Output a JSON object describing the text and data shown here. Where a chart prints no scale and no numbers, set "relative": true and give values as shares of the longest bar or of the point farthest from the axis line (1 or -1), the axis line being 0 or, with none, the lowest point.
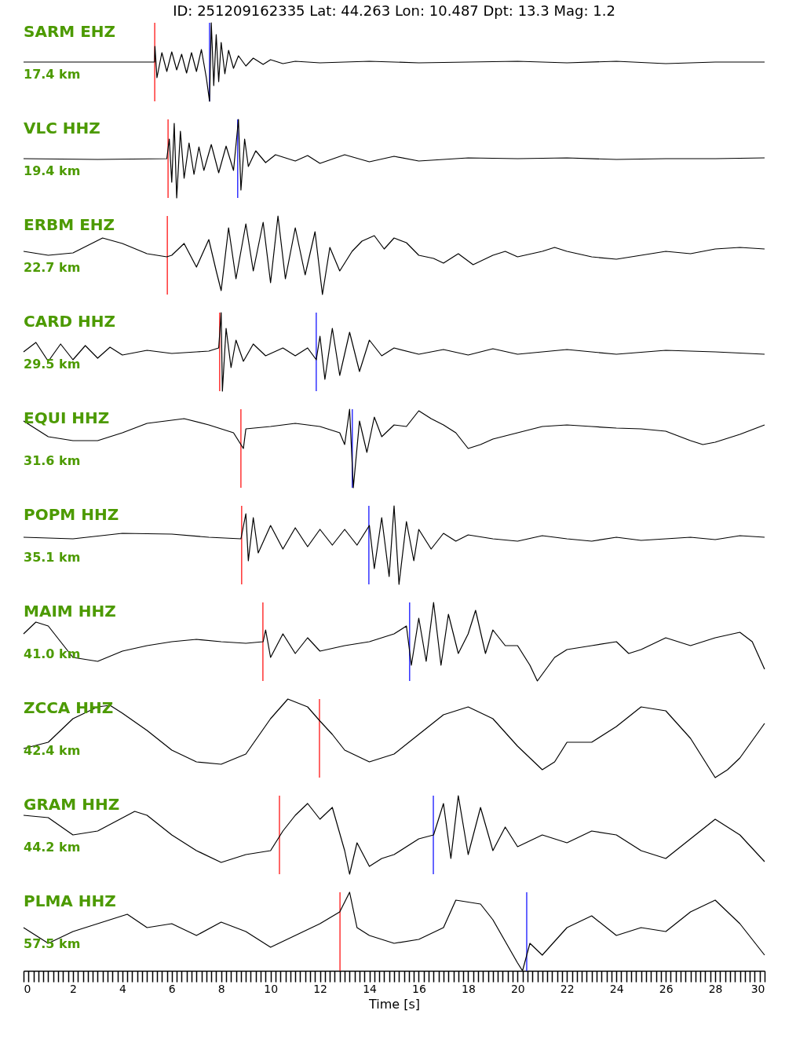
{
  "chart_data": [
    {
      "type": "line",
      "title": "ID: 251209162335 Lat:  44.263 Lon:  10.487 Dpt:    13.3 Mag:   1.2",
      "relative": true,
      "tick_labels": false,
      "xlim": [
        0,
        30
      ],
      "annotations": [
        "SARM EHZ",
        "17.4 km"
      ],
      "ref_lines": [
        {
          "axis": "x",
          "value": 5.31,
          "color": "#ff0000"
        },
        {
          "axis": "x",
          "value": 7.53,
          "color": "#0000ff"
        }
      ],
      "x": [
        0,
        5.0,
        5.3,
        5.32,
        5.4,
        5.6,
        5.8,
        6.0,
        6.2,
        6.4,
        6.6,
        6.8,
        7.0,
        7.2,
        7.4,
        7.53,
        7.6,
        7.7,
        7.8,
        7.9,
        8.0,
        8.15,
        8.3,
        8.5,
        8.7,
        9,
        9.3,
        9.7,
        10,
        10.5,
        11,
        12,
        14,
        16,
        18,
        20,
        22,
        24,
        26,
        28,
        30
      ],
      "series": [
        {
          "color": "#000000",
          "values": [
            0.5,
            0.5,
            0.5,
            0.7,
            0.3,
            0.62,
            0.38,
            0.63,
            0.4,
            0.6,
            0.36,
            0.62,
            0.38,
            0.66,
            0.3,
            0.0,
            1.0,
            0.2,
            0.85,
            0.25,
            0.75,
            0.35,
            0.65,
            0.42,
            0.58,
            0.45,
            0.55,
            0.47,
            0.53,
            0.48,
            0.51,
            0.49,
            0.51,
            0.49,
            0.5,
            0.51,
            0.49,
            0.51,
            0.48,
            0.5,
            0.5
          ]
        }
      ]
    },
    {
      "type": "line",
      "relative": true,
      "tick_labels": false,
      "xlim": [
        0,
        30
      ],
      "annotations": [
        "VLC HHZ",
        "19.4 km"
      ],
      "ref_lines": [
        {
          "axis": "x",
          "value": 5.85,
          "color": "#ff0000"
        },
        {
          "axis": "x",
          "value": 8.67,
          "color": "#0000ff"
        }
      ],
      "x": [
        0,
        3,
        5.8,
        5.9,
        6.0,
        6.1,
        6.2,
        6.35,
        6.5,
        6.7,
        6.9,
        7.1,
        7.3,
        7.6,
        7.9,
        8.2,
        8.5,
        8.7,
        8.8,
        8.95,
        9.1,
        9.4,
        9.8,
        10.2,
        11,
        11.5,
        12,
        13,
        14,
        15,
        16,
        18,
        20,
        22,
        24,
        26,
        28,
        30
      ],
      "series": [
        {
          "color": "#000000",
          "values": [
            0.5,
            0.49,
            0.5,
            0.75,
            0.2,
            0.95,
            0.0,
            0.85,
            0.25,
            0.7,
            0.3,
            0.65,
            0.35,
            0.68,
            0.32,
            0.66,
            0.35,
            1.0,
            0.1,
            0.75,
            0.4,
            0.6,
            0.45,
            0.55,
            0.47,
            0.54,
            0.44,
            0.55,
            0.46,
            0.53,
            0.47,
            0.51,
            0.5,
            0.51,
            0.49,
            0.5,
            0.5,
            0.51
          ]
        }
      ]
    },
    {
      "type": "line",
      "relative": true,
      "tick_labels": false,
      "xlim": [
        0,
        30
      ],
      "annotations": [
        "ERBM EHZ",
        "22.7 km"
      ],
      "ref_lines": [
        {
          "axis": "x",
          "value": 5.82,
          "color": "#ff0000"
        }
      ],
      "x": [
        0,
        1,
        2,
        3.2,
        4,
        5,
        5.8,
        6,
        6.5,
        7,
        7.5,
        7.8,
        8.0,
        8.3,
        8.6,
        9,
        9.3,
        9.7,
        10,
        10.3,
        10.6,
        11,
        11.4,
        11.8,
        12.1,
        12.4,
        12.8,
        13.3,
        13.7,
        14.2,
        14.6,
        15,
        15.5,
        16,
        16.6,
        17,
        17.6,
        18.2,
        19,
        19.5,
        20,
        21,
        21.5,
        22,
        23,
        24,
        25,
        26,
        27,
        28,
        29,
        30
      ],
      "series": [
        {
          "color": "#000000",
          "values": [
            0.55,
            0.5,
            0.53,
            0.72,
            0.65,
            0.52,
            0.48,
            0.5,
            0.65,
            0.35,
            0.7,
            0.3,
            0.05,
            0.85,
            0.2,
            0.9,
            0.3,
            0.92,
            0.15,
            1.0,
            0.2,
            0.85,
            0.25,
            0.8,
            0.0,
            0.6,
            0.3,
            0.55,
            0.68,
            0.75,
            0.58,
            0.72,
            0.66,
            0.5,
            0.46,
            0.4,
            0.52,
            0.38,
            0.5,
            0.55,
            0.48,
            0.55,
            0.6,
            0.55,
            0.48,
            0.45,
            0.5,
            0.55,
            0.52,
            0.58,
            0.6,
            0.58
          ]
        }
      ]
    },
    {
      "type": "line",
      "relative": true,
      "tick_labels": false,
      "xlim": [
        0,
        30
      ],
      "annotations": [
        "CARD HHZ",
        "29.5 km"
      ],
      "ref_lines": [
        {
          "axis": "x",
          "value": 7.94,
          "color": "#ff0000"
        },
        {
          "axis": "x",
          "value": 11.85,
          "color": "#0000ff"
        }
      ],
      "x": [
        0,
        0.5,
        1,
        1.5,
        2,
        2.5,
        3,
        3.5,
        4,
        5,
        6,
        7,
        7.5,
        7.9,
        8.0,
        8.05,
        8.2,
        8.4,
        8.6,
        8.9,
        9.3,
        9.8,
        10.5,
        11,
        11.5,
        11.85,
        12,
        12.2,
        12.5,
        12.8,
        13.2,
        13.6,
        14,
        14.5,
        15,
        16,
        17,
        18,
        19,
        20,
        22,
        24,
        26,
        28,
        30
      ],
      "series": [
        {
          "color": "#000000",
          "values": [
            0.5,
            0.62,
            0.38,
            0.6,
            0.4,
            0.58,
            0.42,
            0.56,
            0.46,
            0.52,
            0.48,
            0.5,
            0.51,
            0.55,
            1.0,
            0.0,
            0.8,
            0.3,
            0.65,
            0.38,
            0.6,
            0.45,
            0.55,
            0.45,
            0.55,
            0.4,
            0.7,
            0.15,
            0.8,
            0.2,
            0.75,
            0.25,
            0.65,
            0.45,
            0.55,
            0.47,
            0.53,
            0.46,
            0.54,
            0.47,
            0.53,
            0.47,
            0.52,
            0.5,
            0.47
          ]
        }
      ]
    },
    {
      "type": "line",
      "relative": true,
      "tick_labels": false,
      "xlim": [
        0,
        30
      ],
      "annotations": [
        "EQUI HHZ",
        "31.6 km"
      ],
      "ref_lines": [
        {
          "axis": "x",
          "value": 8.8,
          "color": "#ff0000"
        },
        {
          "axis": "x",
          "value": 13.31,
          "color": "#0000ff"
        }
      ],
      "x": [
        0,
        1,
        2,
        3,
        4,
        5,
        6.5,
        7.5,
        8.5,
        8.9,
        9,
        10,
        11,
        12,
        12.8,
        13.0,
        13.2,
        13.35,
        13.6,
        13.9,
        14.2,
        14.5,
        15,
        15.5,
        16,
        16.5,
        17,
        17.5,
        18,
        18.5,
        19,
        20,
        21,
        22,
        23,
        24,
        25,
        26,
        27,
        27.5,
        28,
        29,
        30
      ],
      "series": [
        {
          "color": "#000000",
          "values": [
            0.85,
            0.65,
            0.6,
            0.6,
            0.7,
            0.82,
            0.88,
            0.8,
            0.7,
            0.5,
            0.75,
            0.78,
            0.82,
            0.78,
            0.7,
            0.55,
            1.0,
            0.0,
            0.85,
            0.45,
            0.9,
            0.65,
            0.8,
            0.78,
            0.98,
            0.88,
            0.8,
            0.7,
            0.5,
            0.55,
            0.62,
            0.7,
            0.78,
            0.8,
            0.78,
            0.76,
            0.75,
            0.72,
            0.6,
            0.55,
            0.58,
            0.68,
            0.8
          ]
        }
      ]
    },
    {
      "type": "line",
      "relative": true,
      "tick_labels": false,
      "xlim": [
        0,
        30
      ],
      "annotations": [
        "POPM HHZ",
        "35.1 km"
      ],
      "ref_lines": [
        {
          "axis": "x",
          "value": 8.83,
          "color": "#ff0000"
        },
        {
          "axis": "x",
          "value": 13.98,
          "color": "#0000ff"
        }
      ],
      "x": [
        0,
        2,
        4,
        6,
        7.5,
        8.8,
        9.0,
        9.1,
        9.3,
        9.5,
        10,
        10.5,
        11,
        11.5,
        12,
        12.5,
        13,
        13.5,
        14,
        14.2,
        14.5,
        14.8,
        15,
        15.2,
        15.5,
        15.8,
        16,
        16.5,
        17,
        17.5,
        18,
        19,
        20,
        21,
        22,
        23,
        24,
        25,
        26,
        27,
        28,
        29,
        30
      ],
      "series": [
        {
          "color": "#000000",
          "values": [
            0.6,
            0.58,
            0.65,
            0.64,
            0.6,
            0.58,
            0.9,
            0.3,
            0.85,
            0.4,
            0.75,
            0.45,
            0.72,
            0.48,
            0.7,
            0.5,
            0.7,
            0.5,
            0.75,
            0.2,
            0.85,
            0.1,
            1.0,
            0.0,
            0.8,
            0.3,
            0.7,
            0.45,
            0.65,
            0.55,
            0.63,
            0.58,
            0.55,
            0.62,
            0.58,
            0.55,
            0.6,
            0.56,
            0.58,
            0.6,
            0.57,
            0.62,
            0.6
          ]
        }
      ]
    },
    {
      "type": "line",
      "relative": true,
      "tick_labels": false,
      "xlim": [
        0,
        30
      ],
      "annotations": [
        "MAIM HHZ",
        "41.0 km"
      ],
      "ref_lines": [
        {
          "axis": "x",
          "value": 9.69,
          "color": "#ff0000"
        },
        {
          "axis": "x",
          "value": 15.63,
          "color": "#0000ff"
        }
      ],
      "x": [
        0,
        0.5,
        1,
        1.5,
        2,
        3,
        4,
        5,
        6,
        7,
        8,
        9,
        9.7,
        9.8,
        10,
        10.5,
        11,
        11.5,
        12,
        13,
        14,
        14.5,
        15,
        15.5,
        15.7,
        16,
        16.3,
        16.6,
        16.9,
        17.2,
        17.6,
        18,
        18.3,
        18.7,
        19,
        19.5,
        20,
        20.5,
        20.8,
        21.5,
        22,
        23,
        24,
        24.5,
        25,
        26,
        27,
        28,
        29,
        29.5,
        30
      ],
      "series": [
        {
          "color": "#000000",
          "values": [
            0.6,
            0.75,
            0.7,
            0.5,
            0.3,
            0.25,
            0.38,
            0.45,
            0.5,
            0.53,
            0.5,
            0.48,
            0.5,
            0.65,
            0.3,
            0.6,
            0.35,
            0.55,
            0.38,
            0.45,
            0.5,
            0.55,
            0.6,
            0.7,
            0.2,
            0.8,
            0.25,
            1.0,
            0.2,
            0.85,
            0.35,
            0.6,
            0.9,
            0.35,
            0.65,
            0.45,
            0.45,
            0.2,
            0.0,
            0.3,
            0.4,
            0.45,
            0.5,
            0.35,
            0.4,
            0.55,
            0.45,
            0.55,
            0.62,
            0.5,
            0.15
          ]
        }
      ]
    },
    {
      "type": "line",
      "relative": true,
      "tick_labels": false,
      "xlim": [
        0,
        30
      ],
      "annotations": [
        "ZCCA HHZ",
        "42.4 km"
      ],
      "ref_lines": [
        {
          "axis": "x",
          "value": 11.98,
          "color": "#ff0000"
        }
      ],
      "x": [
        0,
        1,
        2,
        3,
        3.5,
        4,
        5,
        6,
        7,
        8,
        9,
        10,
        10.7,
        11.5,
        12,
        12.5,
        13,
        14,
        15,
        16,
        17,
        18,
        19,
        20,
        21,
        21.5,
        22,
        23,
        24,
        25,
        26,
        27,
        28,
        28.5,
        29,
        30
      ],
      "series": [
        {
          "color": "#000000",
          "values": [
            0.37,
            0.45,
            0.75,
            0.9,
            0.92,
            0.82,
            0.6,
            0.35,
            0.2,
            0.17,
            0.3,
            0.75,
            1.0,
            0.9,
            0.72,
            0.55,
            0.35,
            0.2,
            0.3,
            0.55,
            0.8,
            0.9,
            0.75,
            0.4,
            0.1,
            0.2,
            0.45,
            0.45,
            0.65,
            0.9,
            0.85,
            0.5,
            0.0,
            0.1,
            0.25,
            0.69
          ]
        }
      ]
    },
    {
      "type": "line",
      "relative": true,
      "tick_labels": false,
      "xlim": [
        0,
        30
      ],
      "annotations": [
        "GRAM HHZ",
        "44.2 km"
      ],
      "ref_lines": [
        {
          "axis": "x",
          "value": 10.36,
          "color": "#ff0000"
        },
        {
          "axis": "x",
          "value": 16.59,
          "color": "#0000ff"
        }
      ],
      "x": [
        0,
        1,
        2,
        3,
        4.5,
        5,
        6,
        7,
        8,
        9,
        10,
        10.5,
        11,
        11.5,
        12,
        12.5,
        13,
        13.2,
        13.5,
        14,
        14.5,
        15,
        16,
        16.6,
        17,
        17.3,
        17.6,
        18,
        18.5,
        19,
        19.5,
        20,
        21,
        22,
        23,
        24,
        25,
        26,
        27,
        28,
        29,
        30
      ],
      "series": [
        {
          "color": "#000000",
          "values": [
            0.75,
            0.72,
            0.5,
            0.55,
            0.8,
            0.75,
            0.5,
            0.3,
            0.15,
            0.25,
            0.3,
            0.55,
            0.75,
            0.9,
            0.7,
            0.85,
            0.3,
            0.0,
            0.4,
            0.1,
            0.2,
            0.25,
            0.45,
            0.5,
            0.9,
            0.2,
            1.0,
            0.25,
            0.85,
            0.3,
            0.6,
            0.35,
            0.5,
            0.4,
            0.55,
            0.5,
            0.3,
            0.2,
            0.45,
            0.7,
            0.5,
            0.16
          ]
        }
      ]
    },
    {
      "type": "line",
      "relative": true,
      "tick_labels": "x",
      "xlim": [
        0,
        30
      ],
      "xlabel": "Time [s]",
      "annotations": [
        "PLMA HHZ",
        "57.5 km"
      ],
      "ref_lines": [
        {
          "axis": "x",
          "value": 12.81,
          "color": "#ff0000"
        },
        {
          "axis": "x",
          "value": 20.37,
          "color": "#0000ff"
        }
      ],
      "xticks": [
        0,
        {
          "value": 0.2,
          "label": null
        },
        {
          "value": 0.4,
          "label": null
        },
        {
          "value": 0.6,
          "label": null
        },
        {
          "value": 0.8,
          "label": null
        },
        {
          "value": 1,
          "label": null
        },
        {
          "value": 1.2,
          "label": null
        },
        {
          "value": 1.4,
          "label": null
        },
        {
          "value": 1.6,
          "label": null
        },
        {
          "value": 1.8,
          "label": null
        },
        2,
        {
          "value": 2.2,
          "label": null
        },
        {
          "value": 2.4,
          "label": null
        },
        {
          "value": 2.6,
          "label": null
        },
        {
          "value": 2.8,
          "label": null
        },
        {
          "value": 3,
          "label": null
        },
        {
          "value": 3.2,
          "label": null
        },
        {
          "value": 3.4,
          "label": null
        },
        {
          "value": 3.6,
          "label": null
        },
        {
          "value": 3.8,
          "label": null
        },
        4,
        {
          "value": 4.2,
          "label": null
        },
        {
          "value": 4.4,
          "label": null
        },
        {
          "value": 4.6,
          "label": null
        },
        {
          "value": 4.8,
          "label": null
        },
        {
          "value": 5,
          "label": null
        },
        {
          "value": 5.2,
          "label": null
        },
        {
          "value": 5.4,
          "label": null
        },
        {
          "value": 5.6,
          "label": null
        },
        {
          "value": 5.8,
          "label": null
        },
        6,
        {
          "value": 6.2,
          "label": null
        },
        {
          "value": 6.4,
          "label": null
        },
        {
          "value": 6.6,
          "label": null
        },
        {
          "value": 6.8,
          "label": null
        },
        {
          "value": 7,
          "label": null
        },
        {
          "value": 7.2,
          "label": null
        },
        {
          "value": 7.4,
          "label": null
        },
        {
          "value": 7.6,
          "label": null
        },
        {
          "value": 7.8,
          "label": null
        },
        8,
        {
          "value": 8.2,
          "label": null
        },
        {
          "value": 8.4,
          "label": null
        },
        {
          "value": 8.6,
          "label": null
        },
        {
          "value": 8.8,
          "label": null
        },
        {
          "value": 9,
          "label": null
        },
        {
          "value": 9.2,
          "label": null
        },
        {
          "value": 9.4,
          "label": null
        },
        {
          "value": 9.6,
          "label": null
        },
        {
          "value": 9.8,
          "label": null
        },
        10,
        {
          "value": 10.2,
          "label": null
        },
        {
          "value": 10.4,
          "label": null
        },
        {
          "value": 10.6,
          "label": null
        },
        {
          "value": 10.8,
          "label": null
        },
        {
          "value": 11,
          "label": null
        },
        {
          "value": 11.2,
          "label": null
        },
        {
          "value": 11.4,
          "label": null
        },
        {
          "value": 11.6,
          "label": null
        },
        {
          "value": 11.8,
          "label": null
        },
        12,
        {
          "value": 12.2,
          "label": null
        },
        {
          "value": 12.4,
          "label": null
        },
        {
          "value": 12.6,
          "label": null
        },
        {
          "value": 12.8,
          "label": null
        },
        {
          "value": 13,
          "label": null
        },
        {
          "value": 13.2,
          "label": null
        },
        {
          "value": 13.4,
          "label": null
        },
        {
          "value": 13.6,
          "label": null
        },
        {
          "value": 13.8,
          "label": null
        },
        14,
        {
          "value": 14.2,
          "label": null
        },
        {
          "value": 14.4,
          "label": null
        },
        {
          "value": 14.6,
          "label": null
        },
        {
          "value": 14.8,
          "label": null
        },
        {
          "value": 15,
          "label": null
        },
        {
          "value": 15.2,
          "label": null
        },
        {
          "value": 15.4,
          "label": null
        },
        {
          "value": 15.6,
          "label": null
        },
        {
          "value": 15.8,
          "label": null
        },
        16,
        {
          "value": 16.2,
          "label": null
        },
        {
          "value": 16.4,
          "label": null
        },
        {
          "value": 16.6,
          "label": null
        },
        {
          "value": 16.8,
          "label": null
        },
        {
          "value": 17,
          "label": null
        },
        {
          "value": 17.2,
          "label": null
        },
        {
          "value": 17.4,
          "label": null
        },
        {
          "value": 17.6,
          "label": null
        },
        {
          "value": 17.8,
          "label": null
        },
        18,
        {
          "value": 18.2,
          "label": null
        },
        {
          "value": 18.4,
          "label": null
        },
        {
          "value": 18.6,
          "label": null
        },
        {
          "value": 18.8,
          "label": null
        },
        {
          "value": 19,
          "label": null
        },
        {
          "value": 19.2,
          "label": null
        },
        {
          "value": 19.4,
          "label": null
        },
        {
          "value": 19.6,
          "label": null
        },
        {
          "value": 19.8,
          "label": null
        },
        20,
        {
          "value": 20.2,
          "label": null
        },
        {
          "value": 20.4,
          "label": null
        },
        {
          "value": 20.6,
          "label": null
        },
        {
          "value": 20.8,
          "label": null
        },
        {
          "value": 21,
          "label": null
        },
        {
          "value": 21.2,
          "label": null
        },
        {
          "value": 21.4,
          "label": null
        },
        {
          "value": 21.6,
          "label": null
        },
        {
          "value": 21.8,
          "label": null
        },
        22,
        {
          "value": 22.2,
          "label": null
        },
        {
          "value": 22.4,
          "label": null
        },
        {
          "value": 22.6,
          "label": null
        },
        {
          "value": 22.8,
          "label": null
        },
        {
          "value": 23,
          "label": null
        },
        {
          "value": 23.2,
          "label": null
        },
        {
          "value": 23.4,
          "label": null
        },
        {
          "value": 23.6,
          "label": null
        },
        {
          "value": 23.8,
          "label": null
        },
        24,
        {
          "value": 24.2,
          "label": null
        },
        {
          "value": 24.4,
          "label": null
        },
        {
          "value": 24.6,
          "label": null
        },
        {
          "value": 24.8,
          "label": null
        },
        {
          "value": 25,
          "label": null
        },
        {
          "value": 25.2,
          "label": null
        },
        {
          "value": 25.4,
          "label": null
        },
        {
          "value": 25.6,
          "label": null
        },
        {
          "value": 25.8,
          "label": null
        },
        26,
        {
          "value": 26.2,
          "label": null
        },
        {
          "value": 26.4,
          "label": null
        },
        {
          "value": 26.6,
          "label": null
        },
        {
          "value": 26.8,
          "label": null
        },
        {
          "value": 27,
          "label": null
        },
        {
          "value": 27.2,
          "label": null
        },
        {
          "value": 27.4,
          "label": null
        },
        {
          "value": 27.6,
          "label": null
        },
        {
          "value": 27.8,
          "label": null
        },
        28,
        {
          "value": 28.2,
          "label": null
        },
        {
          "value": 28.4,
          "label": null
        },
        {
          "value": 28.6,
          "label": null
        },
        {
          "value": 28.8,
          "label": null
        },
        {
          "value": 29,
          "label": null
        },
        {
          "value": 29.2,
          "label": null
        },
        {
          "value": 29.4,
          "label": null
        },
        {
          "value": 29.6,
          "label": null
        },
        {
          "value": 29.8,
          "label": null
        },
        30
      ],
      "x": [
        0,
        0.5,
        1,
        2,
        3.5,
        4.2,
        5,
        6,
        7,
        8,
        9,
        10,
        11,
        12,
        12.8,
        13.2,
        13.5,
        14,
        15,
        16,
        17,
        17.5,
        18.5,
        19,
        20,
        20.2,
        20.5,
        21,
        22,
        23,
        24,
        25,
        26,
        27,
        28,
        29,
        30
      ],
      "series": [
        {
          "color": "#000000",
          "values": [
            0.55,
            0.45,
            0.35,
            0.5,
            0.65,
            0.72,
            0.55,
            0.6,
            0.45,
            0.62,
            0.5,
            0.3,
            0.45,
            0.6,
            0.75,
            1.0,
            0.55,
            0.45,
            0.35,
            0.4,
            0.55,
            0.9,
            0.85,
            0.65,
            0.1,
            0.0,
            0.35,
            0.2,
            0.55,
            0.7,
            0.45,
            0.55,
            0.5,
            0.75,
            0.9,
            0.6,
            0.2
          ]
        }
      ]
    }
  ]
}
